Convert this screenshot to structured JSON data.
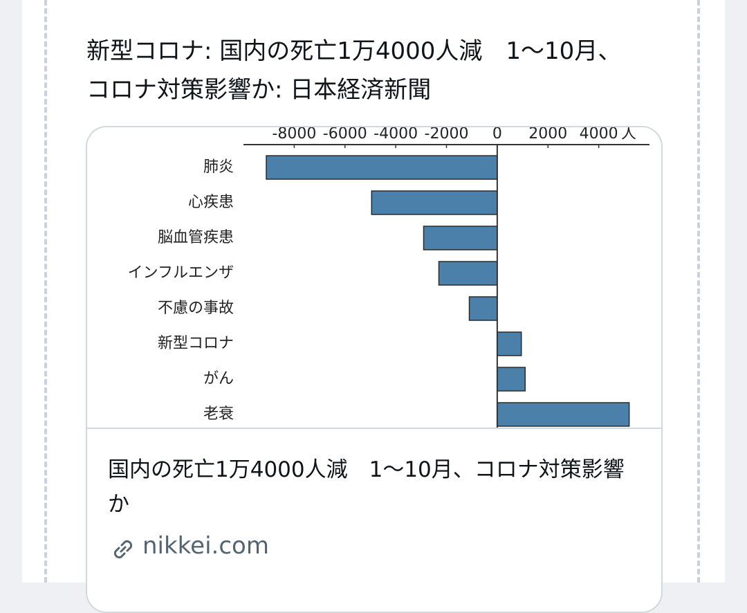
{
  "post": {
    "title": "新型コロナ: 国内の死亡1万4000人減　1〜10月、コロナ対策影響か: 日本経済新聞"
  },
  "chart_data": {
    "type": "bar",
    "orientation": "horizontal",
    "x_unit": "人",
    "categories": [
      "肺炎",
      "心疾患",
      "脳血管疾患",
      "インフルエンザ",
      "不慮の事故",
      "新型コロナ",
      "がん",
      "老衰"
    ],
    "values": [
      -9100,
      -4950,
      -2900,
      -2300,
      -1100,
      950,
      1100,
      5200
    ],
    "color": "#4a80aa",
    "xlim": [
      -10000,
      6000
    ],
    "xticks": [
      -8000,
      -6000,
      -4000,
      -2000,
      0,
      2000,
      4000
    ]
  },
  "card": {
    "title": "国内の死亡1万4000人減　1〜10月、コロナ対策影響か",
    "domain": "nikkei.com"
  }
}
